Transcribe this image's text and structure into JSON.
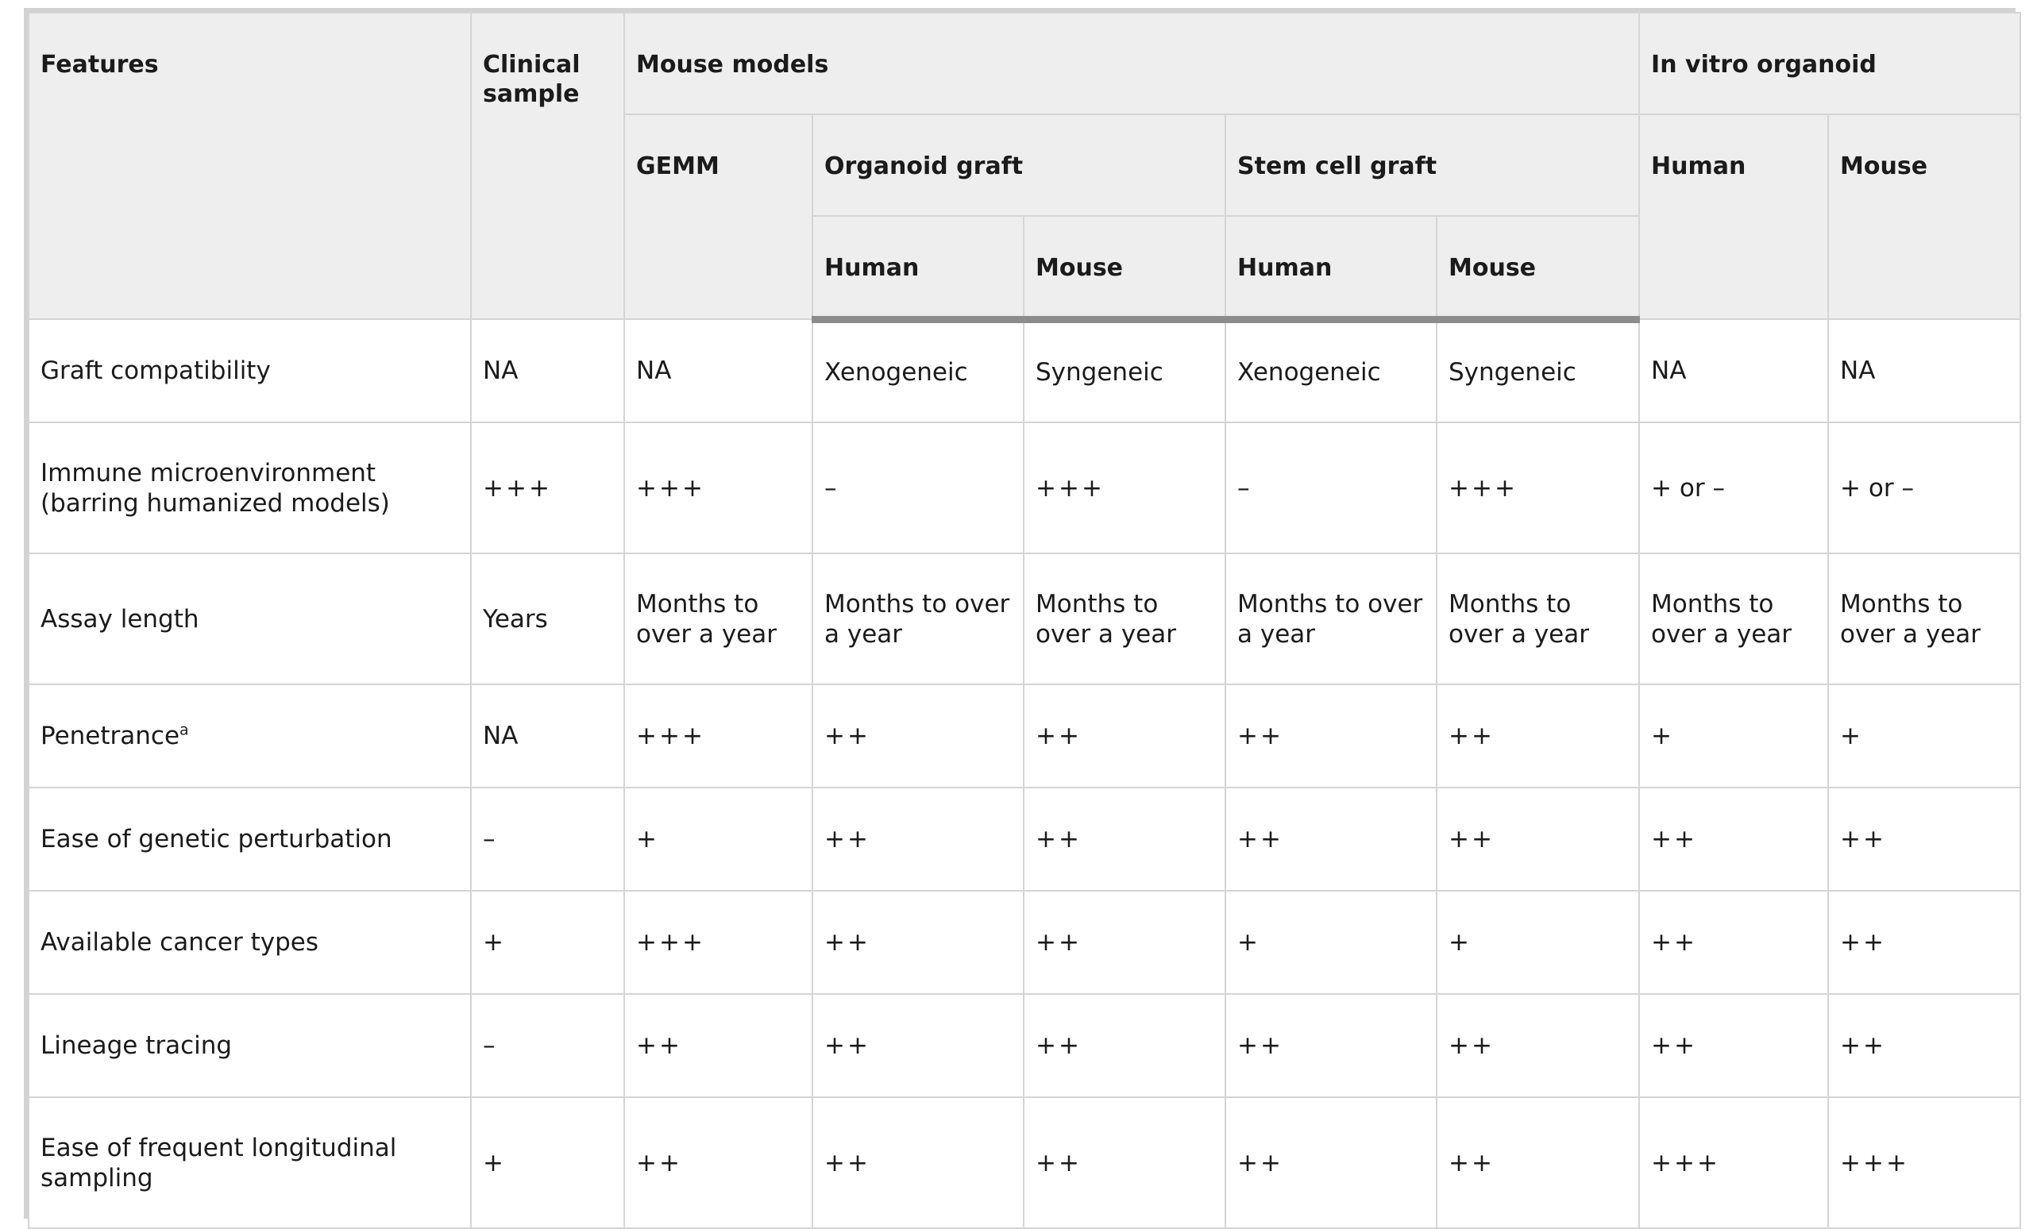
{
  "header": {
    "features": "Features",
    "clinical_sample": "Clinical sample",
    "mouse_models": "Mouse models",
    "in_vitro_organoid": "In vitro organoid",
    "gemm": "GEMM",
    "organoid_graft": "Organoid graft",
    "stem_cell_graft": "Stem cell graft",
    "in_vitro_human": "Human",
    "in_vitro_mouse": "Mouse",
    "og_human": "Human",
    "og_mouse": "Mouse",
    "sc_human": "Human",
    "sc_mouse": "Mouse"
  },
  "rows": [
    {
      "feature": "Graft compatibility",
      "sup": "",
      "cells": [
        "NA",
        "NA",
        "Xenogeneic",
        "Syngeneic",
        "Xenogeneic",
        "Syngeneic",
        "NA",
        "NA"
      ]
    },
    {
      "feature": "Immune microenvironment (barring humanized models)",
      "sup": "",
      "cells": [
        "+++",
        "+++",
        "–",
        "+++",
        "–",
        "+++",
        "+ or –",
        "+ or –"
      ]
    },
    {
      "feature": "Assay length",
      "sup": "",
      "cells": [
        "Years",
        "Months to over a year",
        "Months to over a year",
        "Months to over a year",
        "Months to over a year",
        "Months to over a year",
        "Months to over a year",
        "Months to over a year"
      ]
    },
    {
      "feature": "Penetrance",
      "sup": "a",
      "cells": [
        "NA",
        "+++",
        "++",
        "++",
        "++",
        "++",
        "+",
        "+"
      ]
    },
    {
      "feature": "Ease of genetic perturbation",
      "sup": "",
      "cells": [
        "–",
        "+",
        "++",
        "++",
        "++",
        "++",
        "++",
        "++"
      ]
    },
    {
      "feature": "Available cancer types",
      "sup": "",
      "cells": [
        "+",
        "+++",
        "++",
        "++",
        "+",
        "+",
        "++",
        "++"
      ]
    },
    {
      "feature": "Lineage tracing",
      "sup": "",
      "cells": [
        "–",
        "++",
        "++",
        "++",
        "++",
        "++",
        "++",
        "++"
      ]
    },
    {
      "feature": "Ease of frequent longitudinal sampling",
      "sup": "",
      "cells": [
        "+",
        "++",
        "++",
        "++",
        "++",
        "++",
        "+++",
        "+++"
      ]
    }
  ]
}
